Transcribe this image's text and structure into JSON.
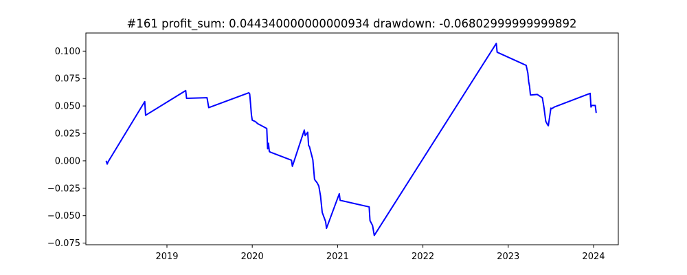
{
  "chart_data": {
    "type": "line",
    "title": "#161   profit_sum: 0.044340000000000934 drawdown: -0.06802999999999892",
    "xlabel": "",
    "ylabel": "",
    "xlim": [
      2018.05,
      2024.29
    ],
    "ylim": [
      -0.0765,
      0.1165
    ],
    "x_ticks": [
      2019,
      2020,
      2021,
      2022,
      2023,
      2024
    ],
    "x_tick_labels": [
      "2019",
      "2020",
      "2021",
      "2022",
      "2023",
      "2024"
    ],
    "y_ticks": [
      -0.075,
      -0.05,
      -0.025,
      0.0,
      0.025,
      0.05,
      0.075,
      0.1
    ],
    "y_tick_labels": [
      "−0.075",
      "−0.050",
      "−0.025",
      "0.000",
      "0.025",
      "0.050",
      "0.075",
      "0.100"
    ],
    "grid": false,
    "series": [
      {
        "color": "#0000ff",
        "x": [
          2018.29,
          2018.3,
          2018.31,
          2018.74,
          2018.75,
          2019.22,
          2019.23,
          2019.47,
          2019.49,
          2019.96,
          2019.97,
          2019.98,
          2019.99,
          2020.0,
          2020.03,
          2020.05,
          2020.06,
          2020.17,
          2020.18,
          2020.19,
          2020.2,
          2020.21,
          2020.46,
          2020.47,
          2020.61,
          2020.62,
          2020.65,
          2020.66,
          2020.67,
          2020.71,
          2020.73,
          2020.76,
          2020.78,
          2020.8,
          2020.82,
          2020.86,
          2020.87,
          2021.02,
          2021.03,
          2021.37,
          2021.38,
          2021.41,
          2021.43,
          2022.86,
          2022.87,
          2023.21,
          2023.23,
          2023.24,
          2023.25,
          2023.26,
          2023.27,
          2023.34,
          2023.4,
          2023.42,
          2023.44,
          2023.46,
          2023.47,
          2023.5,
          2023.51,
          2023.54,
          2023.96,
          2023.97,
          2023.98,
          2024.02,
          2024.03
        ],
        "values": [
          -0.0005,
          -0.003,
          -0.001,
          0.054,
          0.0415,
          0.064,
          0.057,
          0.0575,
          0.0485,
          0.062,
          0.061,
          0.052,
          0.042,
          0.037,
          0.036,
          0.035,
          0.034,
          0.0295,
          0.011,
          0.016,
          0.0085,
          0.008,
          0.0005,
          -0.005,
          0.028,
          0.023,
          0.026,
          0.014,
          0.013,
          0.001,
          -0.017,
          -0.02,
          -0.023,
          -0.032,
          -0.047,
          -0.0555,
          -0.0615,
          -0.03,
          -0.036,
          -0.042,
          -0.0545,
          -0.059,
          -0.068,
          0.107,
          0.099,
          0.087,
          0.08,
          0.072,
          0.068,
          0.06,
          0.06,
          0.0605,
          0.0575,
          0.048,
          0.036,
          0.033,
          0.032,
          0.048,
          0.0475,
          0.049,
          0.0615,
          0.049,
          0.0505,
          0.0505,
          0.0443
        ]
      }
    ]
  }
}
